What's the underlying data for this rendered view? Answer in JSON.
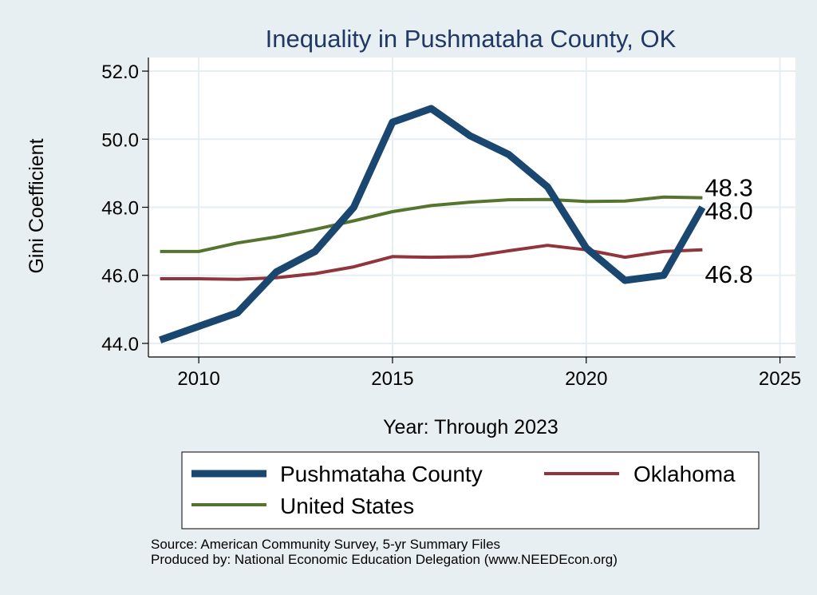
{
  "chart_data": {
    "type": "line",
    "title": "Inequality in Pushmataha County, OK",
    "xlabel": "Year: Through 2023",
    "ylabel": "Gini Coefficient",
    "xlim": [
      2008.7,
      2025.4
    ],
    "ylim": [
      43.6,
      52.4
    ],
    "xticks": [
      2010,
      2015,
      2020,
      2025
    ],
    "yticks": [
      44.0,
      46.0,
      48.0,
      50.0,
      52.0
    ],
    "ytick_labels": [
      "44.0",
      "46.0",
      "48.0",
      "50.0",
      "52.0"
    ],
    "x": [
      2009,
      2010,
      2011,
      2012,
      2013,
      2014,
      2015,
      2016,
      2017,
      2018,
      2019,
      2020,
      2021,
      2022,
      2023
    ],
    "series": [
      {
        "name": "Pushmataha County",
        "color": "#1a476f",
        "values": [
          44.1,
          44.5,
          44.9,
          46.1,
          46.7,
          48.0,
          50.5,
          50.9,
          50.1,
          49.55,
          48.6,
          46.8,
          45.85,
          46.0,
          48.0
        ],
        "end_label": "48.0"
      },
      {
        "name": "Oklahoma",
        "color": "#90353b",
        "values": [
          45.9,
          45.9,
          45.88,
          45.93,
          46.05,
          46.25,
          46.55,
          46.53,
          46.55,
          46.72,
          46.88,
          46.75,
          46.53,
          46.7,
          46.75
        ],
        "end_label": "46.8"
      },
      {
        "name": "United States",
        "color": "#55752f",
        "values": [
          46.7,
          46.7,
          46.95,
          47.13,
          47.35,
          47.6,
          47.87,
          48.05,
          48.15,
          48.22,
          48.23,
          48.17,
          48.18,
          48.3,
          48.28
        ],
        "end_label": "48.3"
      }
    ],
    "legend": {
      "position": "bottom",
      "entries": [
        "Pushmataha County",
        "Oklahoma",
        "United States"
      ]
    },
    "grid": true
  },
  "source_lines": [
    "Source: American Community Survey, 5-yr Summary Files",
    "Produced by: National Economic Education Delegation (www.NEEDEcon.org)"
  ]
}
